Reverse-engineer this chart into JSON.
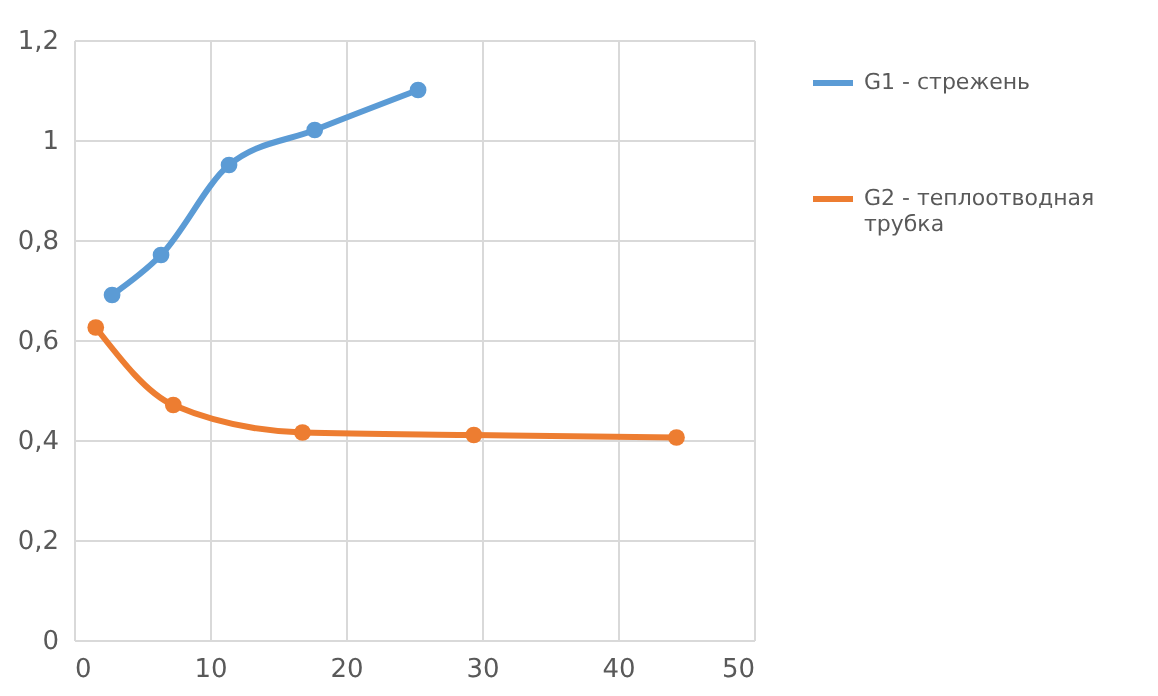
{
  "chart_data": {
    "type": "line",
    "xlim": [
      0,
      50
    ],
    "xticks": [
      0,
      10,
      20,
      30,
      40,
      50
    ],
    "ylim": [
      0,
      1.2
    ],
    "yticks": [
      0,
      {
        "value": 0.2,
        "label": "0,2"
      },
      {
        "value": 0.4,
        "label": "0,4"
      },
      {
        "value": 0.6,
        "label": "0,6"
      },
      {
        "value": 0.8,
        "label": "0,8"
      },
      1,
      {
        "value": 1.2,
        "label": "1,2"
      }
    ],
    "grid": true,
    "legend": "right",
    "marker": "circle",
    "series": [
      {
        "name": "G1 - стрежень",
        "color": "#5b9bd5",
        "x": [
          2.8,
          6.4,
          11.4,
          17.7,
          25.3
        ],
        "values": [
          0.69,
          0.77,
          0.95,
          1.02,
          1.1
        ]
      },
      {
        "name": "G2 - теплоотводная трубка",
        "color": "#ed7d31",
        "x": [
          1.6,
          7.3,
          16.8,
          29.4,
          44.3
        ],
        "values": [
          0.625,
          0.47,
          0.415,
          0.41,
          0.405
        ]
      }
    ]
  }
}
